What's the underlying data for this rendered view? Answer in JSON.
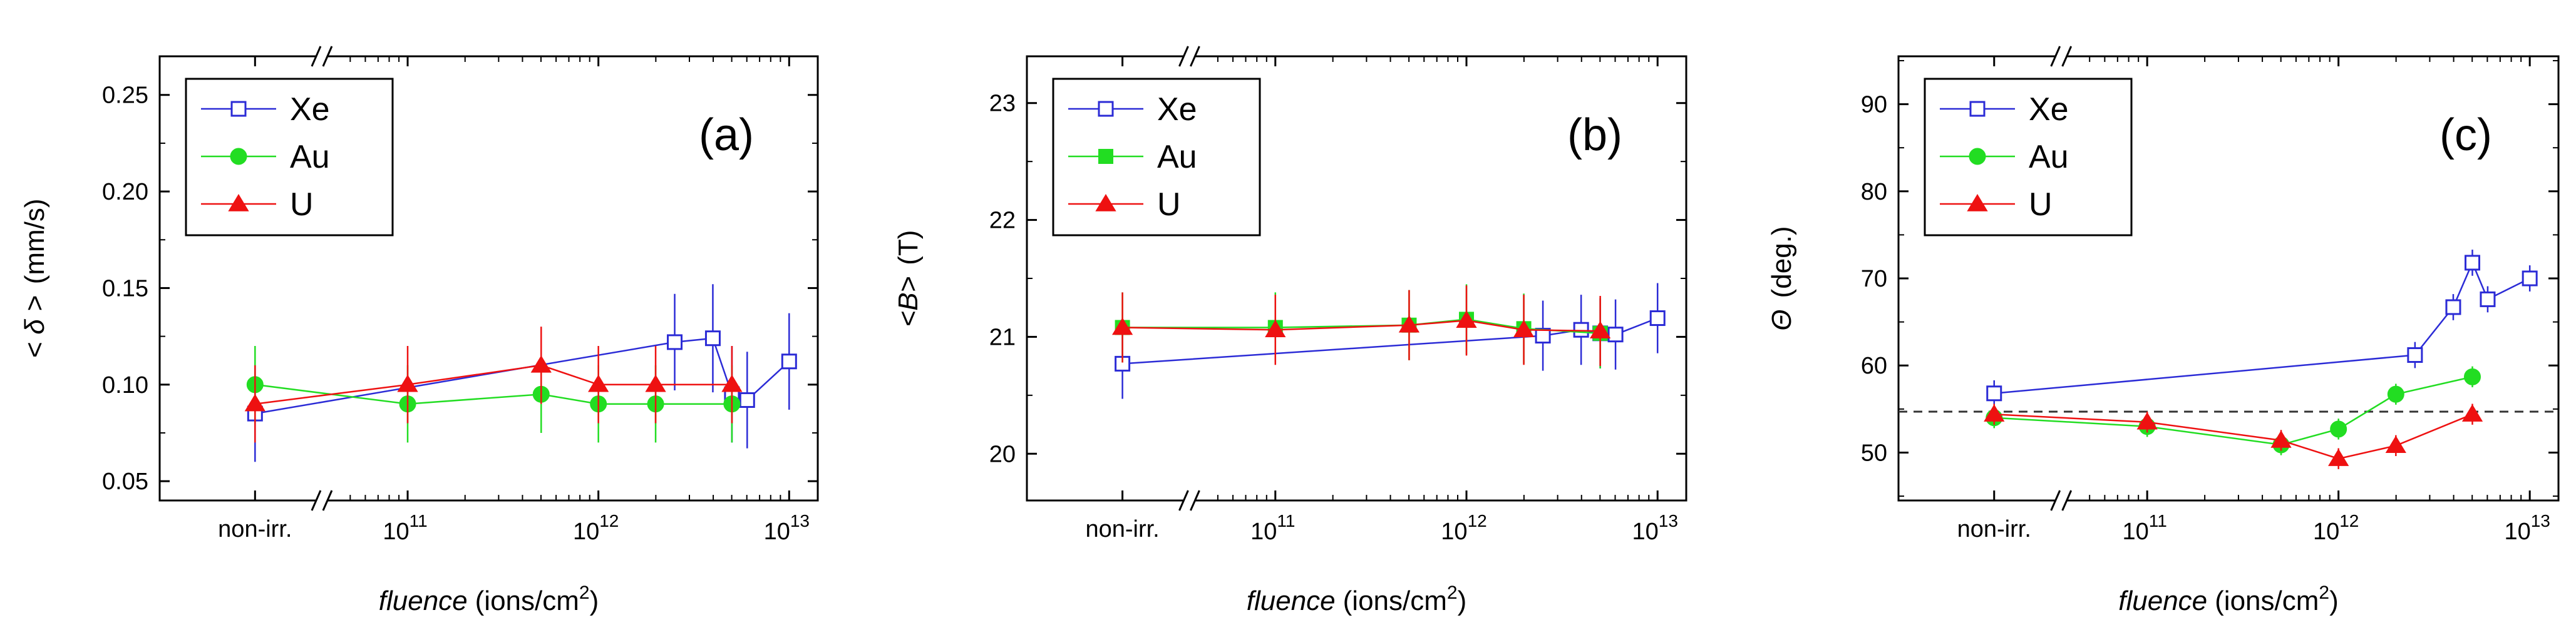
{
  "figure": {
    "background": "#ffffff"
  },
  "chart_data": [
    {
      "type": "line",
      "panel_label": "(a)",
      "ylabel_text": "< δ >",
      "ylabel_unit": "(mm/s)",
      "xlabel_italic": "fluence",
      "xlabel_unit": "(ions/cm",
      "xlabel_sup": "2",
      "xlabel_close": ")",
      "x_axis": "log10 fluence with broken axis; non-irradiated placed at 10.2",
      "xlim": [
        9.7,
        13.15
      ],
      "ylim": [
        0.04,
        0.27
      ],
      "yticks": [
        0.05,
        0.1,
        0.15,
        0.2,
        0.25
      ],
      "ytick_labels": [
        "0.05",
        "0.10",
        "0.15",
        "0.20",
        "0.25"
      ],
      "xticks": [
        {
          "x": 10.2,
          "text": "non-irr.",
          "base": "",
          "exp": ""
        },
        {
          "x": 11,
          "text": "",
          "base": "10",
          "exp": "11"
        },
        {
          "x": 12,
          "text": "",
          "base": "10",
          "exp": "12"
        },
        {
          "x": 13,
          "text": "",
          "base": "10",
          "exp": "13"
        }
      ],
      "break_x": 10.55,
      "dashed_line": null,
      "legend": [
        "Xe",
        "Au",
        "U"
      ],
      "series": [
        {
          "name": "Xe",
          "color": "#2b2bd6",
          "marker": "open-square",
          "x": [
            10.2,
            12.4,
            12.6,
            12.7,
            12.78,
            13.0
          ],
          "y": [
            0.085,
            0.122,
            0.124,
            0.095,
            0.092,
            0.112
          ],
          "err": [
            0.025,
            0.025,
            0.028,
            0.025,
            0.025,
            0.025
          ]
        },
        {
          "name": "Au",
          "color": "#22dd22",
          "marker": "filled-circle",
          "x": [
            10.2,
            11.0,
            11.7,
            12.0,
            12.3,
            12.7
          ],
          "y": [
            0.1,
            0.09,
            0.095,
            0.09,
            0.09,
            0.09
          ],
          "err": [
            0.02,
            0.02,
            0.02,
            0.02,
            0.02,
            0.02
          ]
        },
        {
          "name": "U",
          "color": "#ee1111",
          "marker": "filled-triangle",
          "x": [
            10.2,
            11.0,
            11.7,
            12.0,
            12.3,
            12.7
          ],
          "y": [
            0.09,
            0.1,
            0.11,
            0.1,
            0.1,
            0.1
          ],
          "err": [
            0.02,
            0.02,
            0.02,
            0.02,
            0.02,
            0.02
          ]
        }
      ]
    },
    {
      "type": "line",
      "panel_label": "(b)",
      "ylabel_text": "<B>",
      "ylabel_unit": "(T)",
      "xlabel_italic": "fluence",
      "xlabel_unit": "(ions/cm",
      "xlabel_sup": "2",
      "xlabel_close": ")",
      "x_axis": "log10 fluence with broken axis; non-irradiated placed at 10.2",
      "xlim": [
        9.7,
        13.15
      ],
      "ylim": [
        19.6,
        23.4
      ],
      "yticks": [
        20,
        21,
        22,
        23
      ],
      "ytick_labels": [
        "20",
        "21",
        "22",
        "23"
      ],
      "xticks": [
        {
          "x": 10.2,
          "text": "non-irr.",
          "base": "",
          "exp": ""
        },
        {
          "x": 11,
          "text": "",
          "base": "10",
          "exp": "11"
        },
        {
          "x": 12,
          "text": "",
          "base": "10",
          "exp": "12"
        },
        {
          "x": 13,
          "text": "",
          "base": "10",
          "exp": "13"
        }
      ],
      "break_x": 10.55,
      "dashed_line": null,
      "legend": [
        "Xe",
        "Au",
        "U"
      ],
      "series": [
        {
          "name": "Xe",
          "color": "#2b2bd6",
          "marker": "open-square",
          "x": [
            10.2,
            12.4,
            12.6,
            12.7,
            12.78,
            13.0
          ],
          "y": [
            20.77,
            21.01,
            21.06,
            21.03,
            21.02,
            21.16
          ],
          "err": [
            0.3,
            0.3,
            0.3,
            0.3,
            0.3,
            0.3
          ]
        },
        {
          "name": "Au",
          "color": "#22dd22",
          "marker": "filled-square",
          "x": [
            10.2,
            11.0,
            11.7,
            12.0,
            12.3,
            12.7
          ],
          "y": [
            21.08,
            21.08,
            21.1,
            21.15,
            21.07,
            21.03
          ],
          "err": [
            0.3,
            0.3,
            0.3,
            0.3,
            0.3,
            0.3
          ]
        },
        {
          "name": "U",
          "color": "#ee1111",
          "marker": "filled-triangle",
          "x": [
            10.2,
            11.0,
            11.7,
            12.0,
            12.3,
            12.7
          ],
          "y": [
            21.08,
            21.06,
            21.1,
            21.14,
            21.06,
            21.05
          ],
          "err": [
            0.3,
            0.3,
            0.3,
            0.3,
            0.3,
            0.3
          ]
        }
      ]
    },
    {
      "type": "line",
      "panel_label": "(c)",
      "ylabel_text": "Θ",
      "ylabel_unit": "(deg.)",
      "xlabel_italic": "fluence",
      "xlabel_unit": "(ions/cm",
      "xlabel_sup": "2",
      "xlabel_close": ")",
      "x_axis": "log10 fluence with broken axis; non-irradiated placed at 10.2",
      "xlim": [
        9.7,
        13.15
      ],
      "ylim": [
        44.5,
        95.5
      ],
      "yticks": [
        50,
        60,
        70,
        80,
        90
      ],
      "ytick_labels": [
        "50",
        "60",
        "70",
        "80",
        "90"
      ],
      "xticks": [
        {
          "x": 10.2,
          "text": "non-irr.",
          "base": "",
          "exp": ""
        },
        {
          "x": 11,
          "text": "",
          "base": "10",
          "exp": "11"
        },
        {
          "x": 12,
          "text": "",
          "base": "10",
          "exp": "12"
        },
        {
          "x": 13,
          "text": "",
          "base": "10",
          "exp": "13"
        }
      ],
      "break_x": 10.55,
      "dashed_line": 54.7,
      "legend": [
        "Xe",
        "Au",
        "U"
      ],
      "series": [
        {
          "name": "Xe",
          "color": "#2b2bd6",
          "marker": "open-square",
          "x": [
            10.2,
            12.4,
            12.6,
            12.7,
            12.78,
            13.0
          ],
          "y": [
            56.8,
            61.2,
            66.7,
            71.8,
            67.6,
            70.0
          ],
          "err": [
            1.5,
            1.5,
            1.5,
            1.5,
            1.5,
            1.5
          ]
        },
        {
          "name": "Au",
          "color": "#22dd22",
          "marker": "filled-circle",
          "x": [
            10.2,
            11.0,
            11.7,
            12.0,
            12.3,
            12.7
          ],
          "y": [
            54.0,
            53.0,
            50.9,
            52.7,
            56.7,
            58.7
          ],
          "err": [
            1.2,
            1.2,
            1.2,
            1.2,
            1.2,
            1.2
          ]
        },
        {
          "name": "U",
          "color": "#ee1111",
          "marker": "filled-triangle",
          "x": [
            10.2,
            11.0,
            11.7,
            12.0,
            12.3,
            12.7
          ],
          "y": [
            54.4,
            53.5,
            51.4,
            49.3,
            50.8,
            54.4
          ],
          "err": [
            1.2,
            1.2,
            1.2,
            1.2,
            1.2,
            1.2
          ]
        }
      ]
    }
  ]
}
